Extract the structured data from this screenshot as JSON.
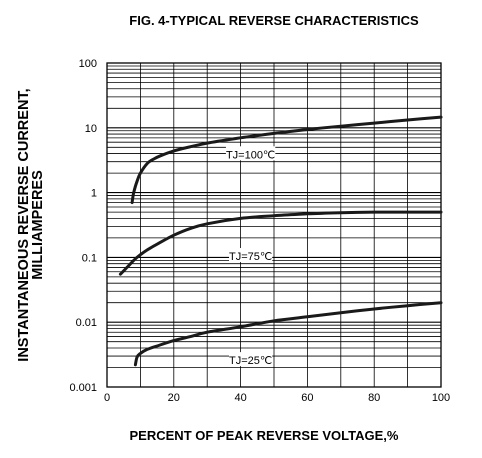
{
  "chart_data": {
    "type": "line",
    "title": "FIG. 4-TYPICAL REVERSE CHARACTERISTICS",
    "xlabel": "PERCENT OF PEAK REVERSE VOLTAGE,%",
    "ylabel_line1": "INSTANTANEOUS REVERSE CURRENT,",
    "ylabel_line2": "MILLIAMPERES",
    "xlim": [
      0,
      100
    ],
    "ylim": [
      0.001,
      100
    ],
    "yscale": "log",
    "grid": true,
    "x_ticks": [
      "0",
      "20",
      "40",
      "60",
      "80",
      "100"
    ],
    "y_ticks": [
      "0.001",
      "0.01",
      "0.1",
      "1",
      "10",
      "100"
    ],
    "series": [
      {
        "name": "TJ=100℃",
        "x": [
          7.5,
          8,
          9,
          10,
          12,
          14,
          16,
          20,
          25,
          30,
          40,
          50,
          60,
          70,
          80,
          90,
          100
        ],
        "y": [
          0.7,
          1.0,
          1.5,
          2.0,
          2.8,
          3.3,
          3.7,
          4.4,
          5.1,
          5.8,
          7.0,
          8.2,
          9.4,
          10.6,
          11.8,
          13.2,
          14.6
        ],
        "label_at_x": 43,
        "label_at_y": 3.9
      },
      {
        "name": "TJ=75℃",
        "x": [
          4,
          6,
          8,
          10,
          12,
          15,
          20,
          25,
          30,
          40,
          50,
          60,
          70,
          80,
          90,
          100
        ],
        "y": [
          0.055,
          0.07,
          0.09,
          0.11,
          0.13,
          0.16,
          0.22,
          0.28,
          0.33,
          0.4,
          0.44,
          0.47,
          0.49,
          0.5,
          0.5,
          0.5
        ],
        "label_at_x": 43,
        "label_at_y": 0.105
      },
      {
        "name": "TJ=25℃",
        "x": [
          8.5,
          9,
          10,
          12,
          15,
          20,
          25,
          30,
          40,
          50,
          60,
          70,
          80,
          90,
          100
        ],
        "y": [
          0.0022,
          0.0029,
          0.0033,
          0.0038,
          0.0043,
          0.0052,
          0.006,
          0.007,
          0.0085,
          0.0105,
          0.0121,
          0.014,
          0.016,
          0.018,
          0.02
        ],
        "label_at_x": 43,
        "label_at_y": 0.0026
      }
    ]
  }
}
